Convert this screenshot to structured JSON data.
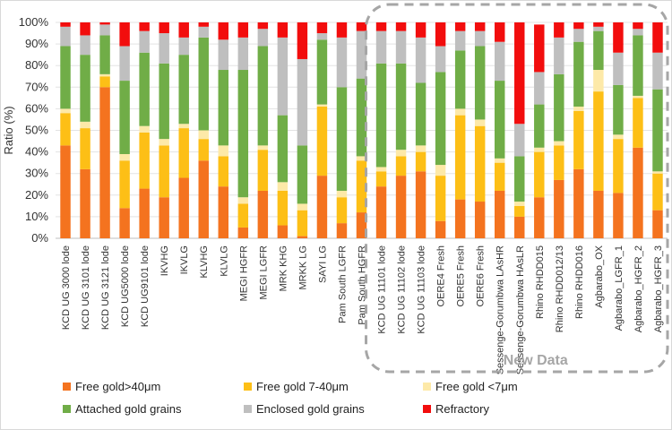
{
  "chart_data": {
    "type": "bar",
    "stacked": true,
    "title": "",
    "xlabel": "",
    "ylabel": "Ratio (%)",
    "ylim": [
      0,
      100
    ],
    "ytick_step": 10,
    "ytick_suffix": "%",
    "legend_position": "bottom",
    "categories": [
      "KCD UG 3000 lode",
      "KCD UG 3101 lode",
      "KCD UG 3121 lode",
      "KCD UG5000 lode",
      "KCD UG9101 lode",
      "IKVHG",
      "IKVLG",
      "KLVHG",
      "KLVLG",
      "MEGI HGFR",
      "MEGI LGFR",
      "MRK KHG",
      "MRKK LG",
      "SAYI LG",
      "Pam South LGFR",
      "Pam South HGFR",
      "KCD UG 11101 lode",
      "KCD UG 11102 lode",
      "KCD UG 11103 lode",
      "OERE4 Fresh",
      "OERE5 Fresh",
      "OERE6 Fresh",
      "Sessenge-Gorumbwa LAsHR",
      "Sessenge-Gorumbwa HAsLR",
      "Rhino RHDD015",
      "Rhino RHDD012/13",
      "Rhino RHDD016",
      "Agbarabo_OX",
      "Agbarabo_LGFR_1",
      "Agbarabo_HGFR_2",
      "Agbarabo_HGFR_3"
    ],
    "series": [
      {
        "name": "Free gold>40μm",
        "color": "#f4731f",
        "values": [
          43,
          32,
          70,
          14,
          23,
          19,
          28,
          36,
          24,
          5,
          22,
          6,
          1,
          29,
          7,
          12,
          24,
          29,
          31,
          8,
          18,
          17,
          22,
          10,
          19,
          27,
          32,
          22,
          21,
          42,
          13
        ]
      },
      {
        "name": "Free gold 7-40μm",
        "color": "#fdbf16",
        "values": [
          15,
          19,
          5,
          22,
          26,
          24,
          23,
          10,
          14,
          11,
          19,
          16,
          12,
          32,
          12,
          24,
          7,
          9,
          9,
          21,
          39,
          35,
          13,
          5,
          21,
          16,
          27,
          46,
          25,
          23,
          17
        ]
      },
      {
        "name": "Free gold <7μm",
        "color": "#fde9a8",
        "values": [
          2,
          3,
          1,
          3,
          3,
          3,
          2,
          4,
          5,
          3,
          2,
          4,
          3,
          1,
          3,
          2,
          2,
          3,
          3,
          5,
          3,
          3,
          2,
          2,
          2,
          2,
          2,
          10,
          2,
          1,
          1
        ]
      },
      {
        "name": "Attached gold grains",
        "color": "#70ad47",
        "values": [
          29,
          31,
          18,
          34,
          34,
          35,
          32,
          43,
          35,
          59,
          46,
          31,
          27,
          30,
          48,
          36,
          48,
          40,
          29,
          43,
          27,
          34,
          36,
          21,
          20,
          31,
          30,
          18,
          23,
          28,
          38
        ]
      },
      {
        "name": "Enclosed gold grains",
        "color": "#bfbfbf",
        "values": [
          9,
          9,
          5,
          16,
          10,
          14,
          8,
          5,
          14,
          15,
          8,
          36,
          40,
          3,
          23,
          22,
          15,
          15,
          21,
          12,
          9,
          7,
          18,
          15,
          15,
          17,
          6,
          2,
          15,
          3,
          17
        ]
      },
      {
        "name": "Refractory",
        "color": "#f20d0d",
        "values": [
          2,
          6,
          1,
          11,
          4,
          5,
          7,
          2,
          8,
          7,
          3,
          7,
          17,
          5,
          7,
          4,
          4,
          4,
          7,
          11,
          4,
          4,
          9,
          47,
          22,
          7,
          3,
          2,
          14,
          3,
          14
        ]
      }
    ],
    "annotations": [
      {
        "text": "New Data",
        "span_from": "KCD UG 11101 lode",
        "span_to": "Agbarabo_HGFR_3",
        "style": "dashed rounded box"
      }
    ]
  }
}
